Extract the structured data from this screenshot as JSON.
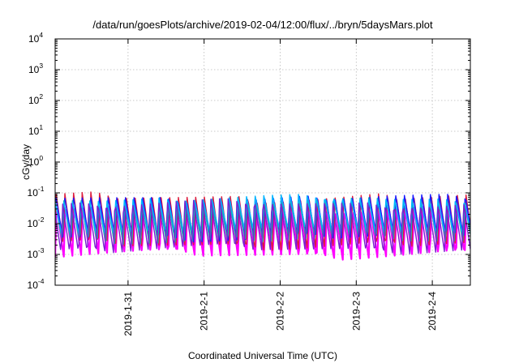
{
  "chart_data": {
    "type": "line",
    "title": "/data/run/goesPlots/archive/2019-02-04/12:00/flux/../bryn/5daysMars.plot",
    "xlabel": "Coordinated Universal Time (UTC)",
    "ylabel": "cGy/day",
    "yscale": "log",
    "ylim": [
      0.0001,
      10000
    ],
    "y_ticks": [
      {
        "base": "10",
        "exp": "-4",
        "value": 0.0001
      },
      {
        "base": "10",
        "exp": "-3",
        "value": 0.001
      },
      {
        "base": "10",
        "exp": "-2",
        "value": 0.01
      },
      {
        "base": "10",
        "exp": "-1",
        "value": 0.1
      },
      {
        "base": "10",
        "exp": "0",
        "value": 1
      },
      {
        "base": "10",
        "exp": "1",
        "value": 10
      },
      {
        "base": "10",
        "exp": "2",
        "value": 100
      },
      {
        "base": "10",
        "exp": "3",
        "value": 1000
      },
      {
        "base": "10",
        "exp": "4",
        "value": 10000
      }
    ],
    "xlim": [
      "2019-01-30T01:00",
      "2019-02-04T12:00"
    ],
    "x_ticks": [
      "2019-1-31",
      "2019-2-1",
      "2019-2-2",
      "2019-2-3",
      "2019-2-4"
    ],
    "grid": true,
    "legend": "none",
    "oscillation_period_hours": 2.75,
    "series": [
      {
        "color": "#ff00ff",
        "min": 0.0008,
        "max": 0.04
      },
      {
        "color": "#dd1a3c",
        "min": 0.0016,
        "max": 0.09
      },
      {
        "color": "#1a1aff",
        "min": 0.003,
        "max": 0.08
      },
      {
        "color": "#20b2aa",
        "min": 0.0025,
        "max": 0.06
      },
      {
        "color": "#00b4ff",
        "min": 0.005,
        "max": 0.075
      },
      {
        "color": "#7a1fd0",
        "min": 0.0012,
        "max": 0.055
      }
    ]
  }
}
